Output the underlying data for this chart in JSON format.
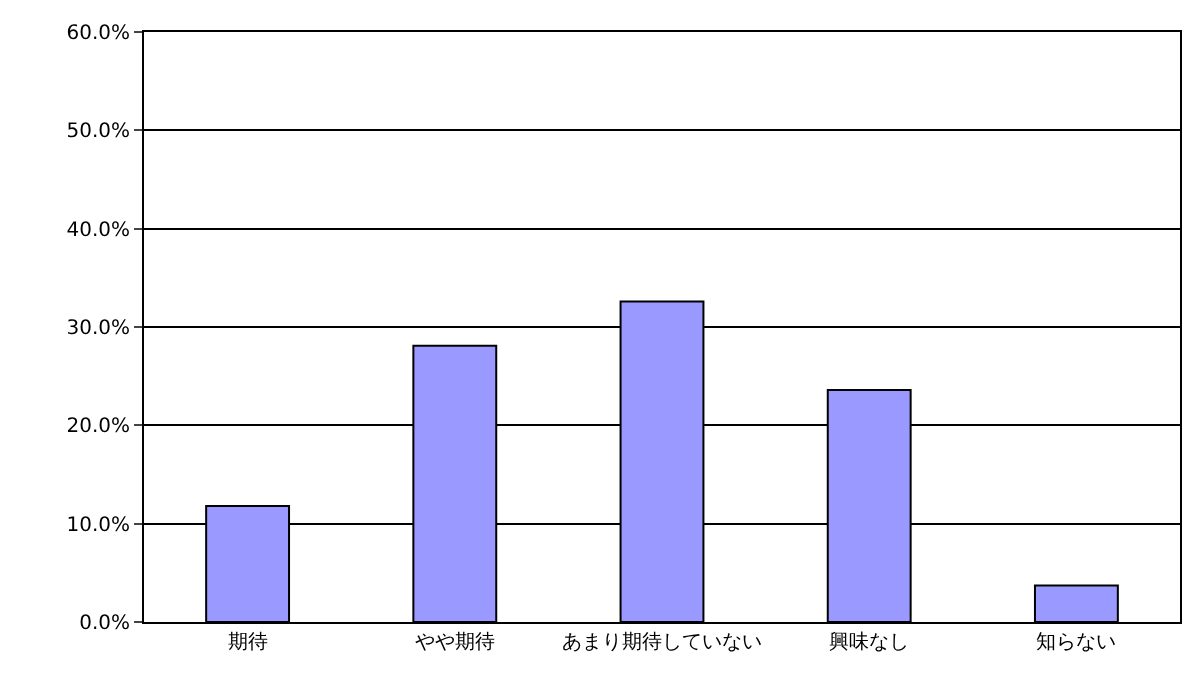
{
  "chart_data": {
    "type": "bar",
    "categories": [
      "期待",
      "やや期待",
      "あまり期待していない",
      "興味なし",
      "知らない"
    ],
    "values": [
      11.8,
      28.1,
      32.6,
      23.6,
      3.7
    ],
    "color": "#9999ff",
    "ylim": [
      0,
      60
    ],
    "yticks": [
      {
        "value": 0,
        "label": "0.0%"
      },
      {
        "value": 10,
        "label": "10.0%"
      },
      {
        "value": 20,
        "label": "20.0%"
      },
      {
        "value": 30,
        "label": "30.0%"
      },
      {
        "value": 40,
        "label": "40.0%"
      },
      {
        "value": 50,
        "label": "50.0%"
      },
      {
        "value": 60,
        "label": "60.0%"
      }
    ],
    "grid": "y"
  }
}
